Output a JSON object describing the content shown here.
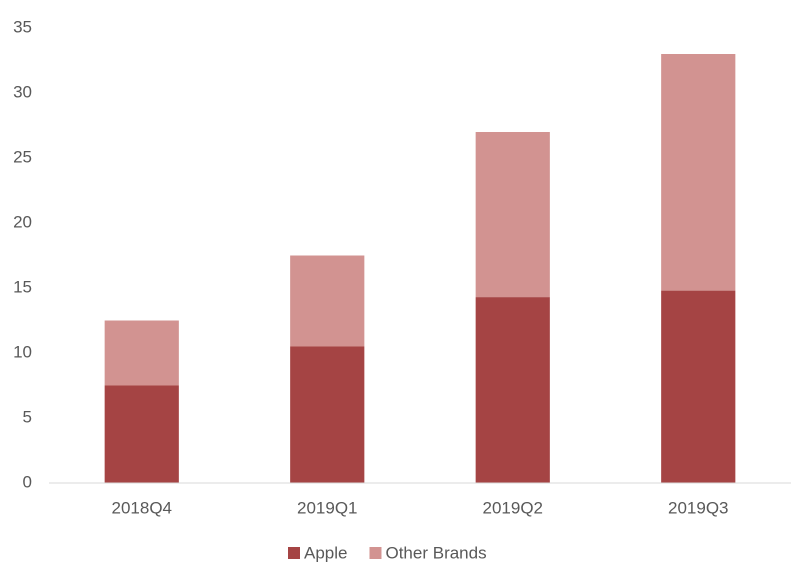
{
  "chart_data": {
    "type": "stacked_bar",
    "categories": [
      "2018Q4",
      "2019Q1",
      "2019Q2",
      "2019Q3"
    ],
    "series": [
      {
        "name": "Apple",
        "color": "#a54444",
        "values": [
          7.5,
          10.5,
          14.3,
          14.8
        ]
      },
      {
        "name": "Other Brands",
        "color": "#d29391",
        "values": [
          5.0,
          7.0,
          12.7,
          18.2
        ]
      }
    ],
    "ylim": [
      0,
      35
    ],
    "yticks": [
      0,
      5,
      10,
      15,
      20,
      25,
      30,
      35
    ],
    "grid": false,
    "legend": "bottom"
  }
}
